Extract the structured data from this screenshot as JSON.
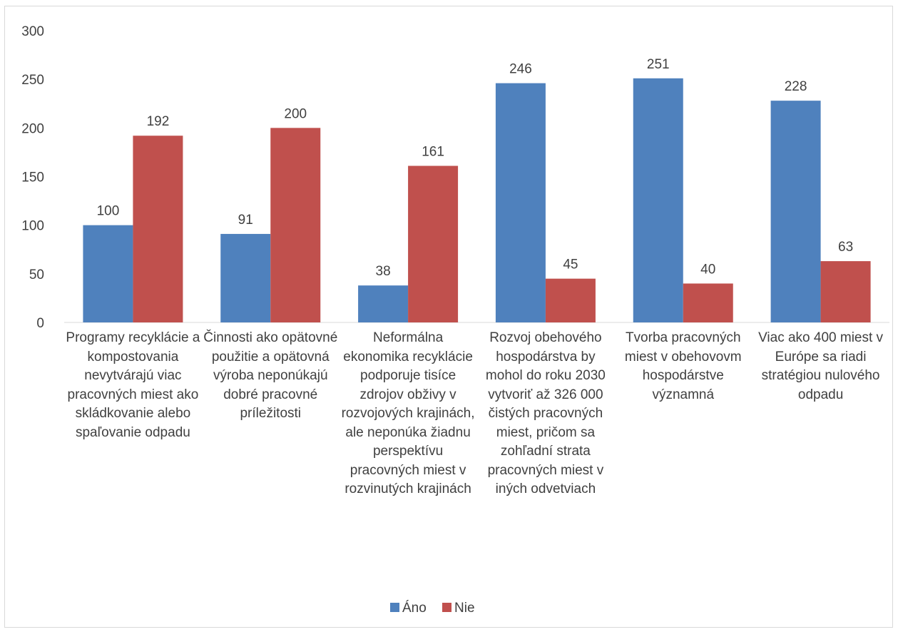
{
  "chart_data": {
    "type": "bar",
    "title": "",
    "xlabel": "",
    "ylabel": "",
    "ylim": [
      0,
      300
    ],
    "yticks": [
      0,
      50,
      100,
      150,
      200,
      250,
      300
    ],
    "grid": false,
    "legend_position": "bottom",
    "categories": [
      "Programy recyklácie a kompostovania nevytvárajú viac pracovných miest ako skládkovanie alebo spaľovanie odpadu",
      "Činnosti ako opätovné použitie a opätovná výroba neponúkajú dobré pracovné príležitosti",
      "Neformálna ekonomika recyklácie podporuje tisíce zdrojov obživy v rozvojových krajinách, ale neponúka žiadnu perspektívu pracovných miest v rozvinutých krajinách",
      "Rozvoj obehového hospodárstva by mohol do roku 2030 vytvoriť až 326 000 čistých pracovných miest, pričom sa zohľadní strata pracovných miest v iných odvetviach",
      "Tvorba pracovných miest v obehovovm hospodárstve významná",
      "Viac ako 400 miest v Európe sa riadi stratégiou nulového odpadu"
    ],
    "series": [
      {
        "name": "Áno",
        "color": "#4f81bd",
        "values": [
          100,
          91,
          38,
          246,
          251,
          228
        ]
      },
      {
        "name": "Nie",
        "color": "#c0504d",
        "values": [
          192,
          200,
          161,
          45,
          40,
          63
        ]
      }
    ]
  }
}
